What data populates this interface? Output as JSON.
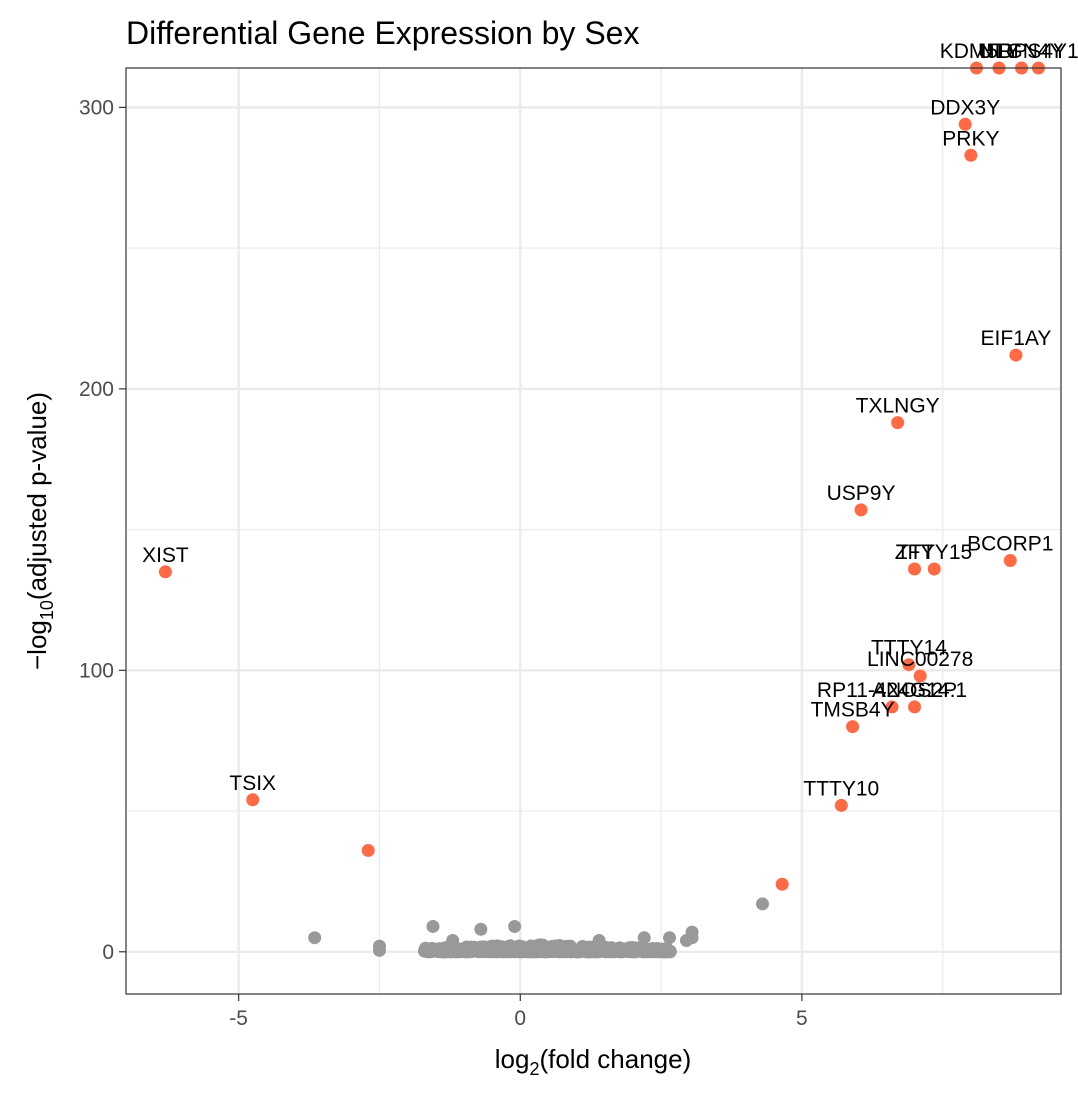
{
  "chart_data": {
    "type": "scatter",
    "title": "Differential Gene Expression by Sex",
    "xlabel": {
      "prefix": "log",
      "sub": "2",
      "suffix": "(fold change)"
    },
    "ylabel": {
      "prefix": "−log",
      "sub": "10",
      "suffix": "(adjusted p-value)"
    },
    "xlim": [
      -7,
      9.6
    ],
    "ylim": [
      -15,
      314
    ],
    "x_ticks": [
      {
        "value": -5,
        "label": "-5"
      },
      {
        "value": 0,
        "label": "0"
      },
      {
        "value": 5,
        "label": "5"
      }
    ],
    "y_ticks": [
      {
        "value": 0,
        "label": "0"
      },
      {
        "value": 100,
        "label": "100"
      },
      {
        "value": 200,
        "label": "200"
      },
      {
        "value": 300,
        "label": "300"
      }
    ],
    "grid": true,
    "colors": {
      "significant": "#FF6A45",
      "not_significant": "#999999",
      "panel_border": "#333333",
      "grid": "#EBEBEB"
    },
    "significant_points": [
      {
        "x": -6.3,
        "y": 135,
        "label": "XIST"
      },
      {
        "x": -4.75,
        "y": 54,
        "label": "TSIX"
      },
      {
        "x": -2.7,
        "y": 36,
        "label": ""
      },
      {
        "x": 4.65,
        "y": 24,
        "label": ""
      },
      {
        "x": 5.7,
        "y": 52,
        "label": "TTTY10"
      },
      {
        "x": 5.9,
        "y": 80,
        "label": "TMSB4Y"
      },
      {
        "x": 6.05,
        "y": 157,
        "label": "USP9Y"
      },
      {
        "x": 6.7,
        "y": 188,
        "label": "TXLNGY"
      },
      {
        "x": 6.6,
        "y": 87,
        "label": "RP11-424G14.1"
      },
      {
        "x": 7.0,
        "y": 87,
        "label": "ANOS2P"
      },
      {
        "x": 6.9,
        "y": 102,
        "label": "TTTY14"
      },
      {
        "x": 7.1,
        "y": 98,
        "label": "LINC00278"
      },
      {
        "x": 7.0,
        "y": 136,
        "label": "ZFY"
      },
      {
        "x": 7.35,
        "y": 136,
        "label": "TTTY15"
      },
      {
        "x": 8.7,
        "y": 139,
        "label": "BCORP1"
      },
      {
        "x": 8.8,
        "y": 212,
        "label": "EIF1AY"
      },
      {
        "x": 8.0,
        "y": 283,
        "label": "PRKY"
      },
      {
        "x": 7.9,
        "y": 294,
        "label": "DDX3Y"
      },
      {
        "x": 8.1,
        "y": 314,
        "label": "KDM5D"
      },
      {
        "x": 8.5,
        "y": 314,
        "label": "UTY"
      },
      {
        "x": 8.9,
        "y": 314,
        "label": "NLGN4Y"
      },
      {
        "x": 9.2,
        "y": 314,
        "label": "RPS4Y1"
      }
    ],
    "nonsignificant_points": [
      {
        "x": 4.3,
        "y": 17
      },
      {
        "x": -3.65,
        "y": 5
      },
      {
        "x": -2.5,
        "y": 2
      },
      {
        "x": -2.5,
        "y": 0.5
      },
      {
        "x": -1.55,
        "y": 9
      },
      {
        "x": -0.7,
        "y": 8
      },
      {
        "x": 3.05,
        "y": 7
      },
      {
        "x": 3.05,
        "y": 5
      },
      {
        "x": 2.95,
        "y": 4
      },
      {
        "x": 2.65,
        "y": 5
      },
      {
        "x": 2.2,
        "y": 5
      },
      {
        "x": 1.4,
        "y": 4
      },
      {
        "x": -1.2,
        "y": 4
      },
      {
        "x": -0.1,
        "y": 9
      }
    ]
  }
}
